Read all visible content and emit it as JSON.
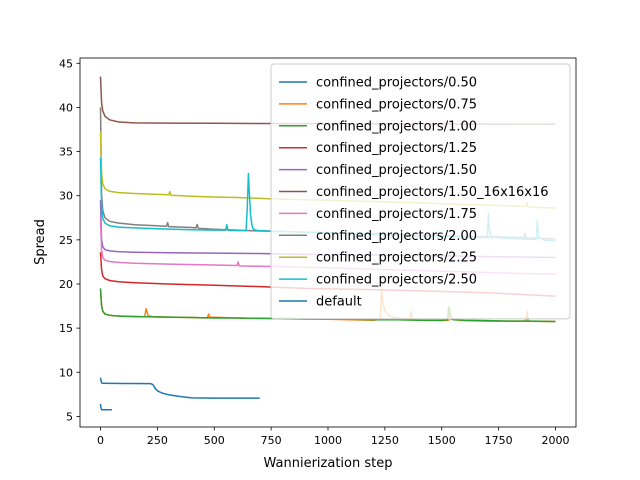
{
  "chart_data": {
    "type": "line",
    "title": "",
    "xlabel": "Wannierization step",
    "ylabel": "Spread",
    "xlim": [
      -90,
      2090
    ],
    "ylim": [
      3.8,
      45.6
    ],
    "xticks": [
      0,
      250,
      500,
      750,
      1000,
      1250,
      1500,
      1750,
      2000
    ],
    "yticks": [
      5,
      10,
      15,
      20,
      25,
      30,
      35,
      40,
      45
    ],
    "grid": false,
    "legend_position": "upper-right",
    "series": [
      {
        "name": "confined_projectors/0.50",
        "color": "#1f77b4",
        "x": [
          0,
          5,
          10,
          50,
          100,
          150,
          200,
          220,
          230,
          240,
          250,
          270,
          300,
          350,
          400,
          450,
          500,
          600,
          700
        ],
        "y": [
          9.4,
          8.8,
          8.75,
          8.74,
          8.73,
          8.73,
          8.72,
          8.72,
          8.6,
          8.2,
          7.9,
          7.65,
          7.45,
          7.25,
          7.1,
          7.08,
          7.07,
          7.07,
          7.07
        ]
      },
      {
        "name": "confined_projectors/0.75",
        "color": "#ff7f0e",
        "x": [
          0,
          5,
          10,
          20,
          40,
          60,
          100,
          150,
          195,
          200,
          205,
          210,
          230,
          300,
          400,
          470,
          475,
          480,
          600,
          700,
          800,
          900,
          1000,
          1100,
          1200,
          1230,
          1235,
          1240,
          1250,
          1270,
          1300,
          1360,
          1365,
          1370,
          1400,
          1500,
          1530,
          1535,
          1540,
          1600,
          1700,
          1800,
          1870,
          1875,
          1880,
          1950,
          2000
        ],
        "y": [
          19.5,
          17.5,
          16.9,
          16.6,
          16.45,
          16.4,
          16.35,
          16.3,
          16.3,
          17.2,
          16.8,
          16.4,
          16.3,
          16.25,
          16.2,
          16.15,
          16.6,
          16.25,
          16.15,
          16.1,
          16.05,
          16.0,
          16.0,
          15.95,
          15.9,
          16.0,
          19.5,
          18.0,
          17.0,
          16.4,
          16.15,
          16.05,
          16.9,
          16.0,
          15.9,
          15.85,
          15.9,
          17.3,
          16.0,
          15.85,
          15.8,
          15.8,
          15.8,
          16.9,
          15.8,
          15.75,
          15.75
        ]
      },
      {
        "name": "confined_projectors/1.00",
        "color": "#2ca02c",
        "x": [
          0,
          5,
          10,
          20,
          40,
          60,
          100,
          200,
          300,
          400,
          500,
          600,
          700,
          800,
          900,
          1000,
          1100,
          1200,
          1300,
          1400,
          1500,
          1525,
          1530,
          1540,
          1550,
          1600,
          1700,
          1800,
          1900,
          2000
        ],
        "y": [
          19.5,
          17.5,
          16.9,
          16.6,
          16.45,
          16.4,
          16.35,
          16.3,
          16.25,
          16.2,
          16.15,
          16.15,
          16.1,
          16.1,
          16.05,
          16.0,
          16.0,
          15.95,
          15.95,
          15.9,
          15.9,
          15.95,
          17.4,
          16.3,
          15.95,
          15.9,
          15.85,
          15.8,
          15.8,
          15.75
        ]
      },
      {
        "name": "confined_projectors/1.25",
        "color": "#d62728",
        "x": [
          0,
          5,
          10,
          20,
          40,
          80,
          150,
          300,
          500,
          700,
          900,
          1100,
          1300,
          1500,
          1700,
          1900,
          2000
        ],
        "y": [
          23.6,
          21.6,
          20.9,
          20.6,
          20.4,
          20.25,
          20.15,
          20.0,
          19.85,
          19.7,
          19.5,
          19.4,
          19.3,
          19.15,
          19.0,
          18.75,
          18.6
        ]
      },
      {
        "name": "confined_projectors/1.50",
        "color": "#9467bd",
        "x": [
          0,
          5,
          10,
          20,
          40,
          80,
          150,
          300,
          500,
          700,
          900,
          1100,
          1300,
          1500,
          1700,
          1900,
          2000
        ],
        "y": [
          29.5,
          25.0,
          24.2,
          23.9,
          23.75,
          23.65,
          23.6,
          23.55,
          23.5,
          23.45,
          23.35,
          23.3,
          23.25,
          23.2,
          23.1,
          23.05,
          23.0
        ]
      },
      {
        "name": "confined_projectors/1.50_16x16x16",
        "color": "#8c564b",
        "x": [
          0,
          5,
          10,
          20,
          40,
          80,
          150,
          300,
          500,
          700,
          900,
          1100,
          1300,
          1500,
          1700,
          1900,
          2000
        ],
        "y": [
          43.5,
          40.5,
          39.6,
          39.0,
          38.6,
          38.35,
          38.25,
          38.22,
          38.2,
          38.18,
          38.17,
          38.15,
          38.13,
          38.12,
          38.11,
          38.1,
          38.1
        ]
      },
      {
        "name": "confined_projectors/1.75",
        "color": "#e377c2",
        "x": [
          0,
          5,
          10,
          20,
          40,
          80,
          150,
          300,
          500,
          600,
          605,
          610,
          700,
          900,
          1100,
          1300,
          1500,
          1700,
          1900,
          2000
        ],
        "y": [
          27.5,
          23.8,
          23.0,
          22.7,
          22.55,
          22.45,
          22.35,
          22.25,
          22.15,
          22.1,
          22.5,
          22.05,
          22.0,
          21.9,
          21.75,
          21.6,
          21.45,
          21.3,
          21.15,
          21.1
        ]
      },
      {
        "name": "confined_projectors/2.00",
        "color": "#7f7f7f",
        "x": [
          0,
          5,
          10,
          20,
          40,
          80,
          120,
          150,
          200,
          290,
          295,
          300,
          400,
          420,
          425,
          430,
          500,
          600,
          700,
          800,
          900,
          1000,
          1100,
          1200,
          1300,
          1400,
          1500,
          1600,
          1700,
          1800,
          1860,
          1865,
          1870,
          1900,
          2000
        ],
        "y": [
          40.0,
          30.0,
          28.3,
          27.5,
          27.1,
          26.9,
          26.8,
          26.7,
          26.65,
          26.55,
          26.95,
          26.5,
          26.4,
          26.35,
          26.75,
          26.3,
          26.2,
          26.1,
          26.0,
          25.95,
          25.85,
          25.8,
          25.75,
          25.7,
          25.6,
          25.5,
          25.45,
          25.4,
          25.35,
          25.3,
          25.25,
          25.7,
          25.2,
          25.2,
          25.1
        ]
      },
      {
        "name": "confined_projectors/2.25",
        "color": "#bcbd22",
        "x": [
          0,
          5,
          10,
          20,
          40,
          80,
          150,
          250,
          300,
          305,
          310,
          400,
          500,
          600,
          700,
          800,
          900,
          1000,
          1100,
          1200,
          1300,
          1400,
          1500,
          1600,
          1700,
          1800,
          1870,
          1875,
          1880,
          1900,
          2000
        ],
        "y": [
          37.3,
          32.5,
          31.3,
          30.8,
          30.5,
          30.35,
          30.25,
          30.15,
          30.1,
          30.45,
          30.05,
          29.95,
          29.85,
          29.8,
          29.7,
          29.6,
          29.55,
          29.5,
          29.4,
          29.35,
          29.25,
          29.2,
          29.1,
          29.0,
          28.95,
          28.85,
          28.8,
          29.2,
          28.75,
          28.7,
          28.6
        ]
      },
      {
        "name": "confined_projectors/2.50",
        "color": "#17becf",
        "x": [
          0,
          5,
          10,
          20,
          40,
          80,
          150,
          250,
          400,
          500,
          550,
          555,
          560,
          600,
          640,
          645,
          650,
          655,
          660,
          665,
          670,
          680,
          700,
          800,
          900,
          1000,
          1100,
          1200,
          1300,
          1400,
          1500,
          1600,
          1700,
          1705,
          1710,
          1720,
          1800,
          1900,
          1915,
          1920,
          1925,
          1950,
          2000
        ],
        "y": [
          34.3,
          28.8,
          27.4,
          26.9,
          26.6,
          26.45,
          26.35,
          26.25,
          26.15,
          26.1,
          26.1,
          26.7,
          26.1,
          26.05,
          26.05,
          28.5,
          32.5,
          30.0,
          27.8,
          26.8,
          26.3,
          26.1,
          26.05,
          25.95,
          25.85,
          25.8,
          25.7,
          25.6,
          25.5,
          25.45,
          25.4,
          25.3,
          25.25,
          28.0,
          26.0,
          25.3,
          25.15,
          25.05,
          25.05,
          27.2,
          25.3,
          24.95,
          24.9
        ]
      },
      {
        "name": "default",
        "color": "#1f77b4",
        "x": [
          0,
          2,
          4,
          6,
          10,
          20,
          30,
          40,
          50
        ],
        "y": [
          6.4,
          6.0,
          5.8,
          5.75,
          5.75,
          5.75,
          5.75,
          5.75,
          5.75
        ]
      }
    ]
  }
}
